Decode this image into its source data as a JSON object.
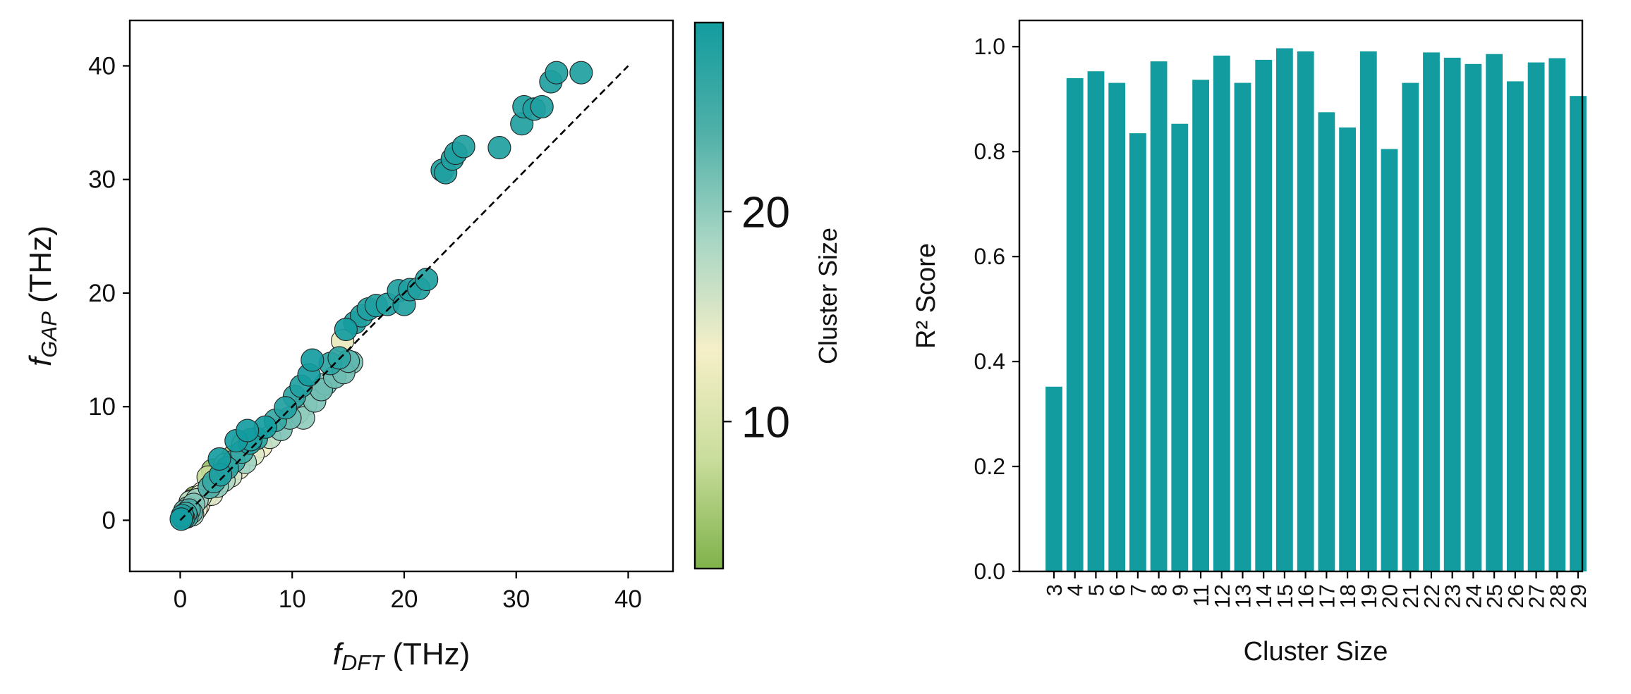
{
  "chart_data": [
    {
      "type": "scatter",
      "xlabel_main": "f",
      "xlabel_sub": "DFT",
      "xlabel_unit": " (THz)",
      "ylabel_main": "f",
      "ylabel_sub": "GAP",
      "ylabel_unit": " (THz)",
      "xlim": [
        -4.5,
        44
      ],
      "ylim": [
        -4.5,
        44
      ],
      "xticks": [
        0,
        10,
        20,
        30,
        40
      ],
      "yticks": [
        0,
        10,
        20,
        30,
        40
      ],
      "reference_line": {
        "style": "dashed",
        "color": "#000000",
        "from": [
          0,
          0
        ],
        "to": [
          40,
          40
        ]
      },
      "colorbar": {
        "label": "Cluster Size",
        "range": [
          3,
          29
        ],
        "ticks": [
          10,
          20
        ],
        "colors": [
          "#7fb24a",
          "#c9dd9c",
          "#f5efc8",
          "#a8d6c4",
          "#4fb0a8",
          "#139c9f"
        ]
      },
      "points": [
        [
          0.1,
          0.1,
          29
        ],
        [
          0.2,
          0.4,
          28
        ],
        [
          0.3,
          0.2,
          27
        ],
        [
          0.5,
          0.6,
          26
        ],
        [
          0.6,
          0.3,
          25
        ],
        [
          0.8,
          0.9,
          24
        ],
        [
          1.0,
          0.7,
          23
        ],
        [
          0.4,
          0.8,
          22
        ],
        [
          1.2,
          1.4,
          21
        ],
        [
          0.7,
          1.1,
          20
        ],
        [
          1.5,
          1.8,
          19
        ],
        [
          1.1,
          0.5,
          18
        ],
        [
          0.9,
          1.6,
          17
        ],
        [
          1.8,
          2.1,
          16
        ],
        [
          1.4,
          1.0,
          15
        ],
        [
          2.0,
          2.4,
          14
        ],
        [
          1.6,
          1.3,
          13
        ],
        [
          2.3,
          2.2,
          12
        ],
        [
          0.3,
          0.5,
          9
        ],
        [
          0.6,
          1.0,
          6
        ],
        [
          1.0,
          1.7,
          4
        ],
        [
          1.3,
          2.0,
          3
        ],
        [
          2.6,
          2.9,
          24
        ],
        [
          3.0,
          3.4,
          26
        ],
        [
          2.8,
          2.3,
          15
        ],
        [
          3.3,
          3.0,
          20
        ],
        [
          3.6,
          4.0,
          28
        ],
        [
          3.9,
          3.5,
          18
        ],
        [
          4.2,
          4.6,
          27
        ],
        [
          4.5,
          3.9,
          16
        ],
        [
          2.5,
          3.8,
          8
        ],
        [
          2.9,
          4.4,
          5
        ],
        [
          3.5,
          5.4,
          29
        ],
        [
          4.8,
          5.2,
          25
        ],
        [
          5.2,
          4.6,
          14
        ],
        [
          5.5,
          6.0,
          26
        ],
        [
          5.8,
          5.1,
          19
        ],
        [
          6.2,
          6.8,
          28
        ],
        [
          6.5,
          5.8,
          15
        ],
        [
          6.8,
          7.2,
          27
        ],
        [
          7.2,
          6.5,
          13
        ],
        [
          7.6,
          8.2,
          29
        ],
        [
          8.0,
          7.3,
          17
        ],
        [
          5.0,
          7.0,
          29
        ],
        [
          6.0,
          7.9,
          29
        ],
        [
          6.3,
          7.1,
          28
        ],
        [
          4.0,
          4.9,
          10
        ],
        [
          4.7,
          5.6,
          7
        ],
        [
          5.6,
          6.7,
          9
        ],
        [
          8.5,
          8.8,
          26
        ],
        [
          9.0,
          8.0,
          21
        ],
        [
          9.4,
          9.9,
          28
        ],
        [
          9.8,
          9.0,
          22
        ],
        [
          10.2,
          10.9,
          27
        ],
        [
          10.5,
          9.5,
          20
        ],
        [
          10.8,
          11.8,
          28
        ],
        [
          11.2,
          10.2,
          19
        ],
        [
          11.5,
          12.8,
          29
        ],
        [
          11.8,
          14.1,
          29
        ],
        [
          11.0,
          9.0,
          20
        ],
        [
          12.0,
          10.5,
          21
        ],
        [
          12.6,
          11.5,
          22
        ],
        [
          13.0,
          12.0,
          21
        ],
        [
          13.4,
          13.8,
          27
        ],
        [
          13.8,
          12.6,
          22
        ],
        [
          14.2,
          14.3,
          27
        ],
        [
          14.6,
          13.0,
          22
        ],
        [
          15.0,
          14.0,
          23
        ],
        [
          15.3,
          13.9,
          21
        ],
        [
          14.5,
          15.8,
          12
        ],
        [
          14.8,
          16.8,
          29
        ],
        [
          15.6,
          17.4,
          28
        ],
        [
          16.2,
          18.0,
          28
        ],
        [
          16.8,
          18.6,
          28
        ],
        [
          17.5,
          18.9,
          28
        ],
        [
          18.5,
          19.0,
          28
        ],
        [
          19.5,
          20.2,
          28
        ],
        [
          20.0,
          19.0,
          28
        ],
        [
          20.5,
          20.3,
          28
        ],
        [
          21.3,
          20.4,
          28
        ],
        [
          22.0,
          21.2,
          28
        ],
        [
          23.4,
          30.8,
          28
        ],
        [
          23.7,
          30.6,
          28
        ],
        [
          24.3,
          31.8,
          28
        ],
        [
          24.6,
          32.3,
          28
        ],
        [
          25.3,
          32.9,
          28
        ],
        [
          28.5,
          32.8,
          28
        ],
        [
          30.5,
          34.9,
          28
        ],
        [
          30.7,
          36.4,
          28
        ],
        [
          31.6,
          36.2,
          28
        ],
        [
          32.3,
          36.4,
          28
        ],
        [
          33.1,
          38.6,
          28
        ],
        [
          33.6,
          39.4,
          28
        ],
        [
          35.8,
          39.4,
          28
        ]
      ]
    },
    {
      "type": "bar",
      "xlabel": "Cluster Size",
      "ylabel": "R² Score",
      "ylim": [
        0,
        1.05
      ],
      "yticks": [
        "0.0",
        "0.2",
        "0.4",
        "0.6",
        "0.8",
        "1.0"
      ],
      "bar_color": "#139c9f",
      "categories": [
        "3",
        "4",
        "5",
        "6",
        "7",
        "8",
        "9",
        "11",
        "12",
        "13",
        "14",
        "15",
        "16",
        "17",
        "18",
        "19",
        "20",
        "21",
        "22",
        "23",
        "24",
        "25",
        "26",
        "27",
        "28",
        "29"
      ],
      "values": [
        0.352,
        0.94,
        0.953,
        0.931,
        0.835,
        0.972,
        0.853,
        0.937,
        0.983,
        0.931,
        0.975,
        0.997,
        0.991,
        0.875,
        0.846,
        0.991,
        0.805,
        0.931,
        0.989,
        0.979,
        0.967,
        0.986,
        0.934,
        0.97,
        0.978,
        0.906
      ]
    }
  ]
}
